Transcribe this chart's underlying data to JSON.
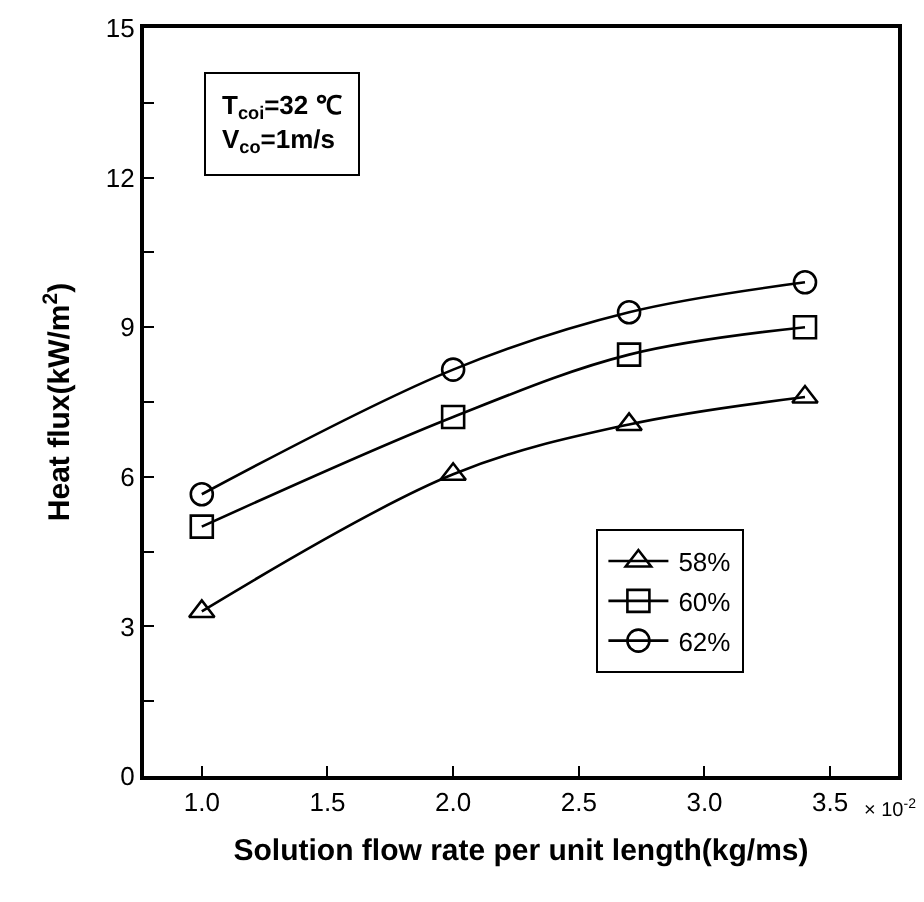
{
  "chart_data": {
    "type": "line",
    "xlabel": "Solution flow rate per unit length(kg/ms)",
    "ylabel": "Heat flux(kW/m$^{2}$)",
    "x": [
      1.0,
      2.0,
      2.7,
      3.4
    ],
    "series": [
      {
        "name": "58%",
        "color": "#000000",
        "marker": "triangle",
        "values": [
          3.3,
          6.05,
          7.05,
          7.6
        ]
      },
      {
        "name": "60%",
        "color": "#000000",
        "marker": "square",
        "values": [
          5.0,
          7.2,
          8.45,
          9.0
        ]
      },
      {
        "name": "62%",
        "color": "#000000",
        "marker": "circle",
        "values": [
          5.65,
          8.15,
          9.3,
          9.9
        ]
      }
    ],
    "xlim": [
      0.77,
      3.77
    ],
    "xticks": [
      {
        "value": 1,
        "label": "1.0"
      },
      1.5,
      {
        "value": 2,
        "label": "2.0"
      },
      2.5,
      {
        "value": 3,
        "label": "3.0"
      },
      3.5
    ],
    "ylim": [
      0,
      15
    ],
    "yticks": [
      0,
      {
        "value": 1.5,
        "label": null
      },
      3,
      {
        "value": 4.5,
        "label": null
      },
      6,
      {
        "value": 7.5,
        "label": null
      },
      9,
      {
        "value": 10.5,
        "label": null
      },
      12,
      {
        "value": 13.5,
        "label": null
      },
      15
    ],
    "annotations": [
      "T$_{coi}$=32 ℃",
      "V$_{co}$=1m/s",
      "× 10$^{-2}$"
    ],
    "legend": "bottom right",
    "grid": false,
    "line_style": "solid"
  }
}
